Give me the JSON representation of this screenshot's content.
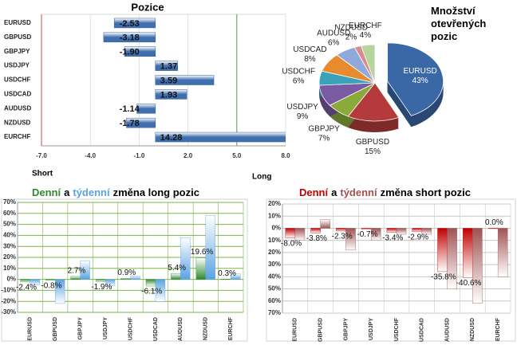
{
  "chart_data": [
    {
      "type": "bar",
      "horizontal": true,
      "title": "Pozice",
      "categories": [
        "EURUSD",
        "GBPUSD",
        "GBPJPY",
        "USDJPY",
        "USDCHF",
        "USDCAD",
        "AUDUSD",
        "NZDUSD",
        "EURCHF"
      ],
      "values": [
        -2.53,
        -3.18,
        -1.9,
        1.37,
        3.59,
        1.93,
        -1.14,
        -1.78,
        14.28
      ],
      "value_labels": [
        "-2.53",
        "-3.18",
        "-1.90",
        "1.37",
        "3.59",
        "1.93",
        "-1.14",
        "-1.78",
        "14.28"
      ],
      "color": "#3f6fae",
      "xlim": [
        -7,
        8
      ],
      "xticks": [
        {
          "value": -7,
          "label": "-7.0"
        },
        {
          "value": -4,
          "label": "-4.0"
        },
        {
          "value": -1,
          "label": "-1.0"
        },
        {
          "value": 2,
          "label": "2.0"
        },
        {
          "value": 5,
          "label": "5.0"
        },
        {
          "value": 8,
          "label": "8.0"
        }
      ],
      "lines": [
        {
          "value": -7,
          "color": "#d04848"
        },
        {
          "value": 5,
          "color": "#5aa050"
        }
      ],
      "left_label": "Short",
      "right_label": "Long"
    },
    {
      "type": "pie",
      "title": "Množství otevřených pozic",
      "categories": [
        "EURUSD",
        "GBPUSD",
        "GBPJPY",
        "USDJPY",
        "USDCHF",
        "USDCAD",
        "AUDUSD",
        "NZDUSD",
        "EURCHF"
      ],
      "values": [
        43,
        15,
        7,
        9,
        6,
        8,
        6,
        2,
        4
      ],
      "value_labels": [
        "43%",
        "15%",
        "7%",
        "9%",
        "6%",
        "8%",
        "6%",
        "2%",
        "4%"
      ],
      "colors": [
        "#3a68a6",
        "#b43a3c",
        "#8aab3c",
        "#7a5aa2",
        "#3aa2ba",
        "#e88a2e",
        "#8ea9da",
        "#d98b8d",
        "#b5d59c"
      ]
    },
    {
      "type": "bar",
      "title_link": "a",
      "title": "změna long pozic",
      "categories": [
        "EURUSD",
        "GBPUSD",
        "GBPJPY",
        "USDJPY",
        "USDCHF",
        "USDCAD",
        "AUDUSD",
        "NZDUSD",
        "EURCHF"
      ],
      "series": [
        {
          "name": "Denní",
          "color": "#2f8a2f",
          "values": [
            -2.4,
            -0.8,
            2.7,
            -1.9,
            0.9,
            -6.1,
            5.4,
            19.6,
            0.3
          ],
          "value_labels": [
            "-2.4%",
            "-0.8%",
            "2.7%",
            "-1.9%",
            "0.9%",
            "-6.1%",
            "5.4%",
            "19.6%",
            "0.3%"
          ]
        },
        {
          "name": "týdenní",
          "color": "#5aa2e2",
          "values": [
            -5,
            -22,
            17,
            -6,
            3,
            -20,
            38,
            58,
            5
          ]
        }
      ],
      "ylim": [
        -30,
        70
      ],
      "yticks": [
        {
          "value": -30,
          "label": "-30%"
        },
        {
          "value": -20,
          "label": "-20%"
        },
        {
          "value": -10,
          "label": "-10%"
        },
        {
          "value": 0,
          "label": "0%"
        },
        {
          "value": 10,
          "label": "10%"
        },
        {
          "value": 20,
          "label": "20%"
        },
        {
          "value": 30,
          "label": "30%"
        },
        {
          "value": 40,
          "label": "40%"
        },
        {
          "value": 50,
          "label": "50%"
        },
        {
          "value": 60,
          "label": "60%"
        },
        {
          "value": 70,
          "label": "70%"
        }
      ],
      "grid": true,
      "grid_color": "#7ab648"
    },
    {
      "type": "bar",
      "title_link": "a",
      "title": "změna short pozic",
      "categories": [
        "EURUSD",
        "GBPUSD",
        "GBPJPY",
        "USDJPY",
        "USDCHF",
        "USDCAD",
        "AUDUSD",
        "NZDUSD",
        "EURCHF"
      ],
      "series": [
        {
          "name": "Denní",
          "color": "#c00000",
          "values": [
            -8.0,
            -3.8,
            -2.3,
            -0.7,
            -3.4,
            -2.9,
            -35.8,
            -40.6,
            0.0
          ],
          "value_labels": [
            "-8.0%",
            "-3.8%",
            "-2.3%",
            "-0.7%",
            "-3.4%",
            "-2.9%",
            "-35.8%",
            "-40.6%",
            "0.0%"
          ]
        },
        {
          "name": "týdenní",
          "color": "#a05252",
          "values": [
            -10,
            7,
            -18,
            -10,
            -5,
            -5,
            -50,
            -62,
            -40
          ]
        }
      ],
      "ylim": [
        -70,
        20
      ],
      "yticks": [
        {
          "value": -70,
          "label": "70%"
        },
        {
          "value": -60,
          "label": "60%"
        },
        {
          "value": -50,
          "label": "50%"
        },
        {
          "value": -40,
          "label": "40%"
        },
        {
          "value": -30,
          "label": "30%"
        },
        {
          "value": -20,
          "label": "20%"
        },
        {
          "value": -10,
          "label": "10%"
        },
        {
          "value": 0,
          "label": "0%"
        },
        {
          "value": 10,
          "label": "10%"
        },
        {
          "value": 20,
          "label": "20%"
        }
      ],
      "grid": true,
      "grid_color": "#c8c8c8"
    }
  ]
}
